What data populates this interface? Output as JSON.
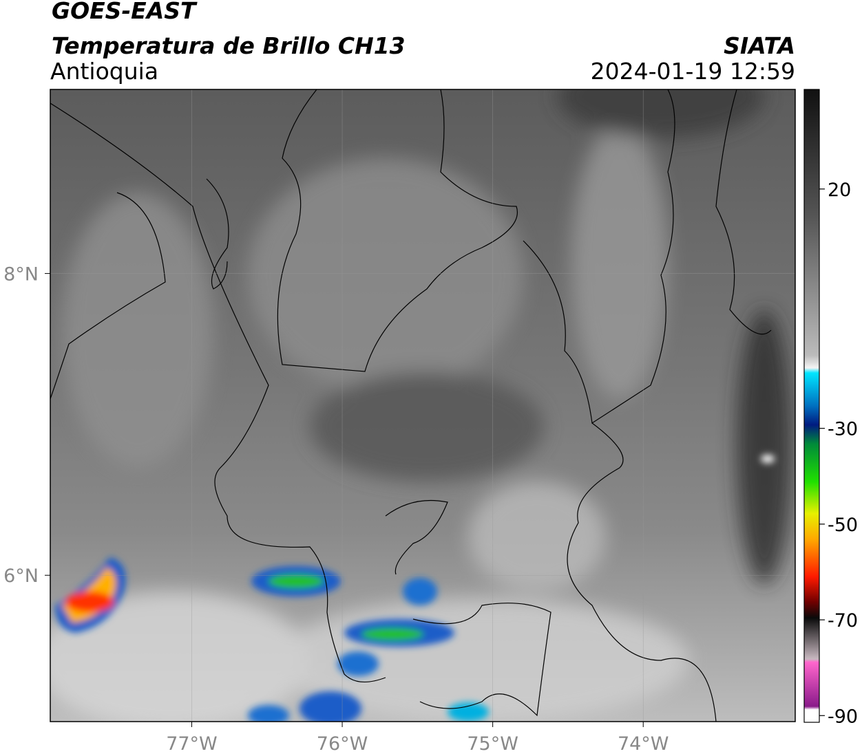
{
  "header": {
    "title": "GOES-EAST",
    "subtitle": "Temperatura de Brillo CH13",
    "region": "Antioquia",
    "source": "SIATA",
    "datetime": "2024-01-19 12:59"
  },
  "map": {
    "lonlim": [
      -77.94,
      -72.99
    ],
    "latlim": [
      5.03,
      9.22
    ],
    "lonticks": [
      {
        "value": -77,
        "label": "77°W"
      },
      {
        "value": -76,
        "label": "76°W"
      },
      {
        "value": -75,
        "label": "75°W"
      },
      {
        "value": -74,
        "label": "74°W"
      }
    ],
    "latticks": [
      {
        "value": 8,
        "label": "8°N"
      },
      {
        "value": 6,
        "label": "6°N"
      }
    ]
  },
  "colorbar": {
    "lim": [
      -91.4,
      40.8
    ],
    "ticks": [
      20,
      -30,
      -50,
      -70,
      -90
    ]
  }
}
